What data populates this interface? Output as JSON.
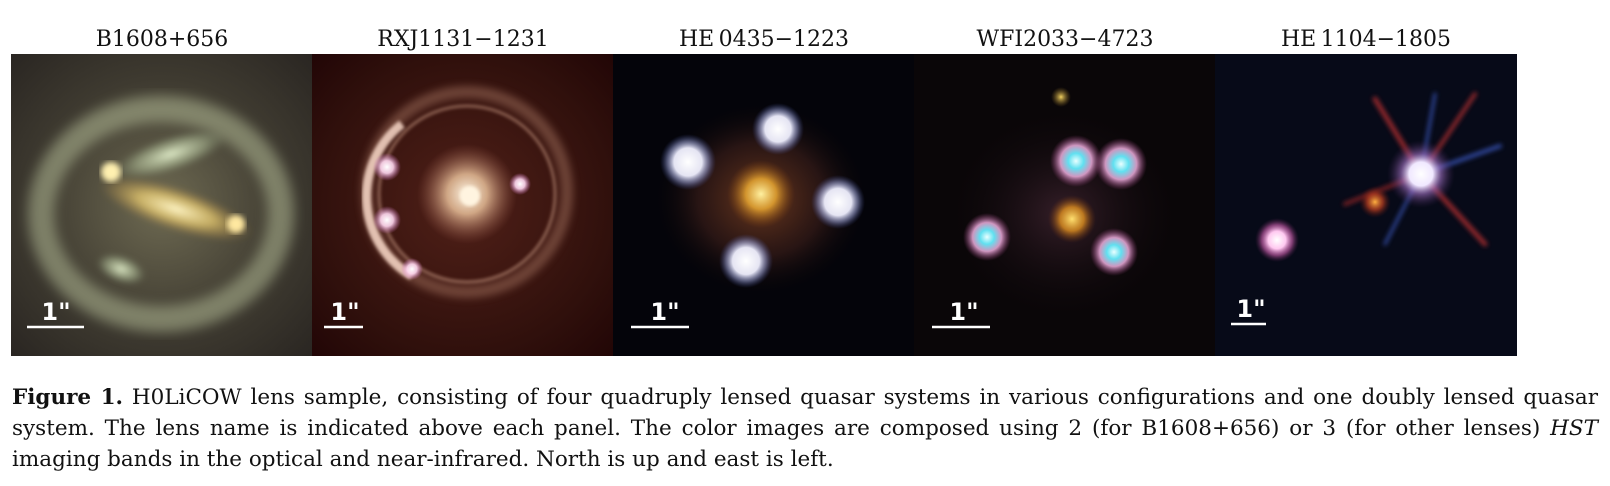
{
  "figure": {
    "panels": [
      {
        "name": "B1608+656",
        "scale_label": "1\"",
        "bg": "#3a3630"
      },
      {
        "name": "RXJ1131−1231",
        "scale_label": "1\"",
        "bg": "#2a0808"
      },
      {
        "name": "HE 0435−1223",
        "scale_label": "1\"",
        "bg": "#04040a"
      },
      {
        "name": "WFI2033−4723",
        "scale_label": "1\"",
        "bg": "#0a0608"
      },
      {
        "name": "HE 1104−1805",
        "scale_label": "1\"",
        "bg": "#070a18"
      }
    ]
  },
  "caption": {
    "label": "Figure 1.",
    "text_1": " H0LiCOW lens sample, consisting of four quadruply lensed quasar systems in various configurations and one doubly lensed quasar system. The lens name is indicated above each panel. The color images are composed using 2 (for B1608+656) or 3 (for other lenses) ",
    "emphasis": "HST",
    "text_2": " imaging bands in the optical and near-infrared. North is up and east is left."
  }
}
